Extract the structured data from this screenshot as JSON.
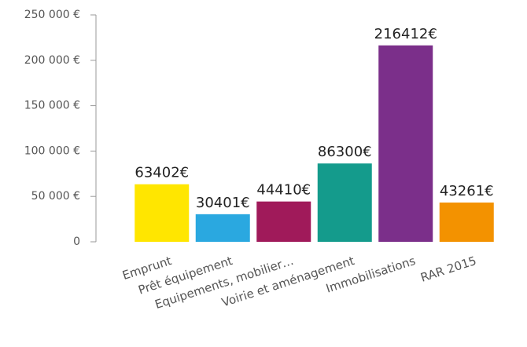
{
  "chart_data": {
    "type": "bar",
    "categories": [
      "Emprunt",
      "Prêt équipement",
      "Equipements, mobilier…",
      "Voirie et aménagement",
      "Immobilisations",
      "RAR 2015"
    ],
    "values": [
      63402,
      30401,
      44410,
      86300,
      216412,
      43261
    ],
    "value_labels": [
      "63402€",
      "30401€",
      "44410€",
      "86300€",
      "216412€",
      "43261€"
    ],
    "colors": [
      "#ffe600",
      "#2aa8e0",
      "#a01a5a",
      "#149b8c",
      "#7b2f8a",
      "#f39200"
    ],
    "ylim": [
      0,
      250000
    ],
    "yticks": [
      0,
      {
        "value": 50000,
        "label": "50 000 €"
      },
      {
        "value": 100000,
        "label": "100 000 €"
      },
      {
        "value": 150000,
        "label": "150 000 €"
      },
      {
        "value": 200000,
        "label": "200 000 €"
      },
      {
        "value": 250000,
        "label": "250 000 €"
      }
    ]
  }
}
